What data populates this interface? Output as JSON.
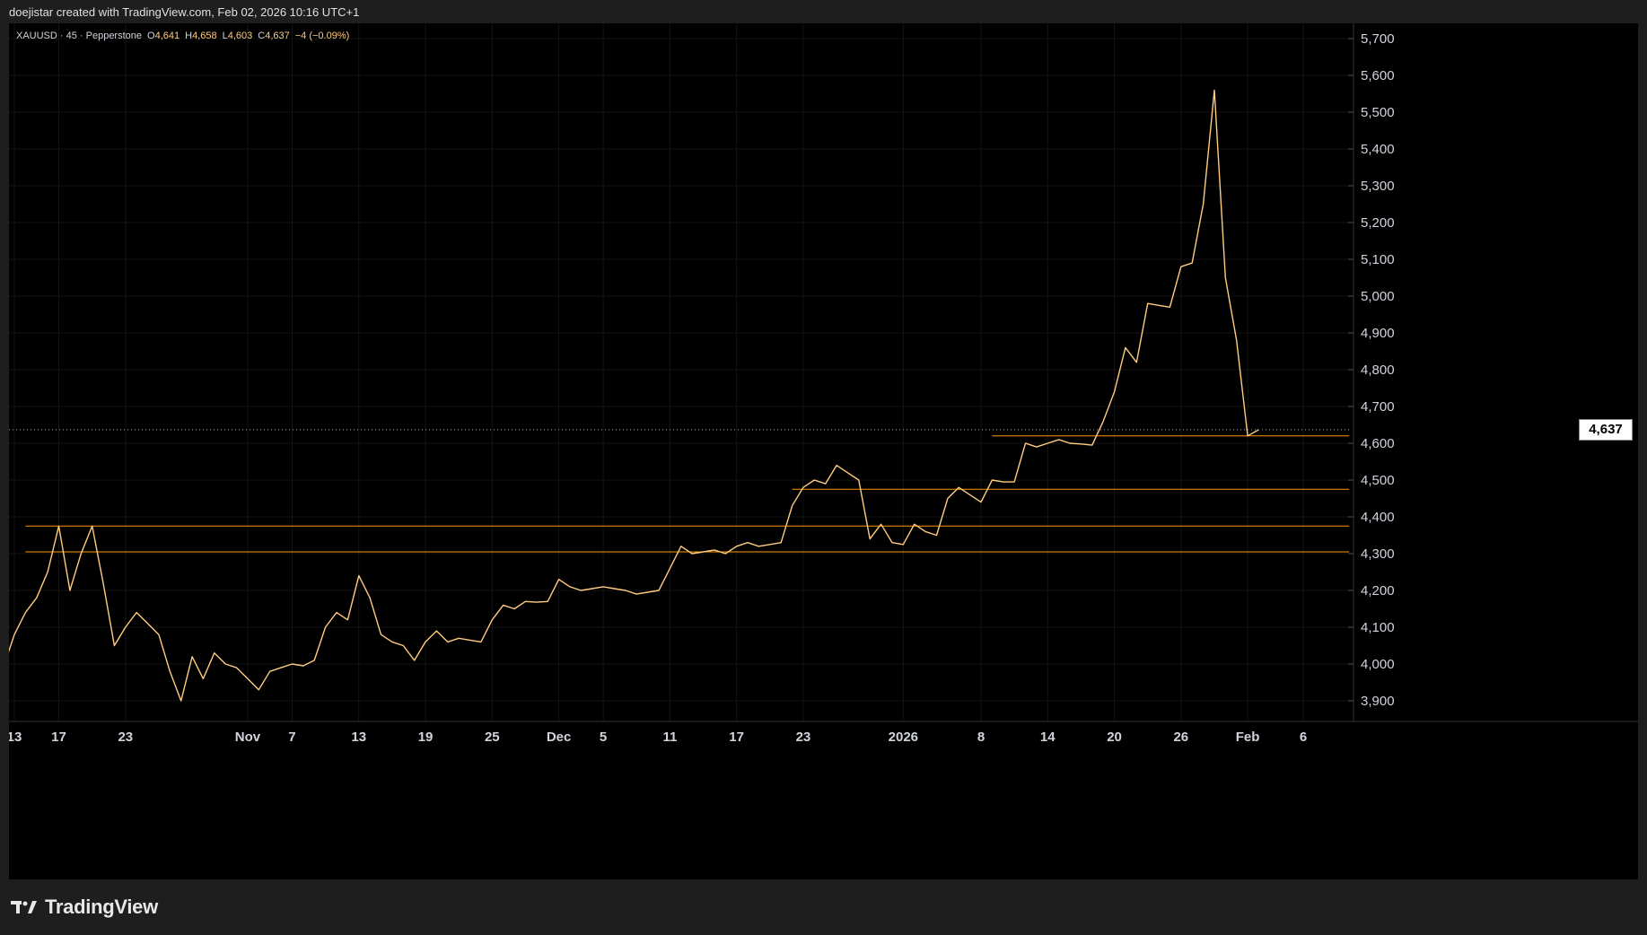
{
  "header": {
    "credit": "doejistar created with TradingView.com, Feb 02, 2026 10:16 UTC+1"
  },
  "legend": {
    "symbol": "XAUUSD · 45 · Pepperstone",
    "o_label": "O",
    "o_value": "4,641",
    "h_label": "H",
    "h_value": "4,658",
    "l_label": "L",
    "l_value": "4,603",
    "c_label": "C",
    "c_value": "4,637",
    "change": "−4 (−0.09%)"
  },
  "brand": {
    "name": "TradingView"
  },
  "colors": {
    "price": "#ffcc80",
    "level": "#ff9800",
    "background": "#000000",
    "grid": "#1a1a1a"
  },
  "chart_data": {
    "type": "line",
    "symbol": "XAUUSD",
    "interval": "45",
    "last_price": 4637,
    "last_price_label": "4,637",
    "y_ticks": [
      3900,
      4000,
      4100,
      4200,
      4300,
      4400,
      4500,
      4600,
      4700,
      4800,
      4900,
      5000,
      5100,
      5200,
      5300,
      5400,
      5500,
      5600,
      5700
    ],
    "y_tick_labels": [
      "3,900",
      "4,000",
      "4,100",
      "4,200",
      "4,300",
      "4,400",
      "4,500",
      "4,600",
      "4,700",
      "4,800",
      "4,900",
      "5,000",
      "5,100",
      "5,200",
      "5,300",
      "5,400",
      "5,500",
      "5,600",
      "5,700"
    ],
    "ylim": [
      3860,
      5760
    ],
    "x_ticks": [
      {
        "label": "13",
        "date": "2025-10-13"
      },
      {
        "label": "17",
        "date": "2025-10-17"
      },
      {
        "label": "23",
        "date": "2025-10-23"
      },
      {
        "label": "Nov",
        "date": "2025-11-03"
      },
      {
        "label": "7",
        "date": "2025-11-07"
      },
      {
        "label": "13",
        "date": "2025-11-13"
      },
      {
        "label": "19",
        "date": "2025-11-19"
      },
      {
        "label": "25",
        "date": "2025-11-25"
      },
      {
        "label": "Dec",
        "date": "2025-12-01"
      },
      {
        "label": "5",
        "date": "2025-12-05"
      },
      {
        "label": "11",
        "date": "2025-12-11"
      },
      {
        "label": "17",
        "date": "2025-12-17"
      },
      {
        "label": "23",
        "date": "2025-12-23"
      },
      {
        "label": "2026",
        "date": "2026-01-01"
      },
      {
        "label": "8",
        "date": "2026-01-08"
      },
      {
        "label": "14",
        "date": "2026-01-14"
      },
      {
        "label": "20",
        "date": "2026-01-20"
      },
      {
        "label": "26",
        "date": "2026-01-26"
      },
      {
        "label": "Feb",
        "date": "2026-02-01"
      },
      {
        "label": "6",
        "date": "2026-02-06"
      }
    ],
    "horizontal_levels": [
      {
        "price": 4620,
        "from_date": "2026-01-09"
      },
      {
        "price": 4475,
        "from_date": "2025-12-22"
      },
      {
        "price": 4375,
        "from_date": "2025-10-14"
      },
      {
        "price": 4305,
        "from_date": "2025-10-14"
      }
    ],
    "series": [
      {
        "points": [
          [
            "2025-10-12",
            3990
          ],
          [
            "2025-10-13",
            4080
          ],
          [
            "2025-10-14",
            4140
          ],
          [
            "2025-10-15",
            4180
          ],
          [
            "2025-10-16",
            4250
          ],
          [
            "2025-10-17",
            4375
          ],
          [
            "2025-10-18",
            4200
          ],
          [
            "2025-10-19",
            4300
          ],
          [
            "2025-10-20",
            4375
          ],
          [
            "2025-10-21",
            4220
          ],
          [
            "2025-10-22",
            4050
          ],
          [
            "2025-10-23",
            4100
          ],
          [
            "2025-10-24",
            4140
          ],
          [
            "2025-10-25",
            4110
          ],
          [
            "2025-10-26",
            4080
          ],
          [
            "2025-10-27",
            3980
          ],
          [
            "2025-10-28",
            3900
          ],
          [
            "2025-10-29",
            4020
          ],
          [
            "2025-10-30",
            3960
          ],
          [
            "2025-10-31",
            4030
          ],
          [
            "2025-11-01",
            4000
          ],
          [
            "2025-11-02",
            3990
          ],
          [
            "2025-11-03",
            3960
          ],
          [
            "2025-11-04",
            3930
          ],
          [
            "2025-11-05",
            3980
          ],
          [
            "2025-11-06",
            3990
          ],
          [
            "2025-11-07",
            4000
          ],
          [
            "2025-11-08",
            3995
          ],
          [
            "2025-11-09",
            4010
          ],
          [
            "2025-11-10",
            4100
          ],
          [
            "2025-11-11",
            4140
          ],
          [
            "2025-11-12",
            4120
          ],
          [
            "2025-11-13",
            4240
          ],
          [
            "2025-11-14",
            4180
          ],
          [
            "2025-11-15",
            4080
          ],
          [
            "2025-11-16",
            4060
          ],
          [
            "2025-11-17",
            4050
          ],
          [
            "2025-11-18",
            4010
          ],
          [
            "2025-11-19",
            4060
          ],
          [
            "2025-11-20",
            4090
          ],
          [
            "2025-11-21",
            4060
          ],
          [
            "2025-11-22",
            4070
          ],
          [
            "2025-11-23",
            4065
          ],
          [
            "2025-11-24",
            4060
          ],
          [
            "2025-11-25",
            4120
          ],
          [
            "2025-11-26",
            4160
          ],
          [
            "2025-11-27",
            4150
          ],
          [
            "2025-11-28",
            4170
          ],
          [
            "2025-11-29",
            4168
          ],
          [
            "2025-11-30",
            4170
          ],
          [
            "2025-12-01",
            4230
          ],
          [
            "2025-12-02",
            4210
          ],
          [
            "2025-12-03",
            4200
          ],
          [
            "2025-12-04",
            4205
          ],
          [
            "2025-12-05",
            4210
          ],
          [
            "2025-12-06",
            4205
          ],
          [
            "2025-12-07",
            4200
          ],
          [
            "2025-12-08",
            4190
          ],
          [
            "2025-12-09",
            4195
          ],
          [
            "2025-12-10",
            4200
          ],
          [
            "2025-12-11",
            4260
          ],
          [
            "2025-12-12",
            4320
          ],
          [
            "2025-12-13",
            4300
          ],
          [
            "2025-12-14",
            4305
          ],
          [
            "2025-12-15",
            4310
          ],
          [
            "2025-12-16",
            4300
          ],
          [
            "2025-12-17",
            4320
          ],
          [
            "2025-12-18",
            4330
          ],
          [
            "2025-12-19",
            4320
          ],
          [
            "2025-12-20",
            4325
          ],
          [
            "2025-12-21",
            4330
          ],
          [
            "2025-12-22",
            4430
          ],
          [
            "2025-12-23",
            4480
          ],
          [
            "2025-12-24",
            4500
          ],
          [
            "2025-12-25",
            4490
          ],
          [
            "2025-12-26",
            4540
          ],
          [
            "2025-12-27",
            4520
          ],
          [
            "2025-12-28",
            4500
          ],
          [
            "2025-12-29",
            4340
          ],
          [
            "2025-12-30",
            4380
          ],
          [
            "2025-12-31",
            4330
          ],
          [
            "2026-01-01",
            4325
          ],
          [
            "2026-01-02",
            4380
          ],
          [
            "2026-01-03",
            4360
          ],
          [
            "2026-01-04",
            4350
          ],
          [
            "2026-01-05",
            4450
          ],
          [
            "2026-01-06",
            4480
          ],
          [
            "2026-01-07",
            4460
          ],
          [
            "2026-01-08",
            4440
          ],
          [
            "2026-01-09",
            4500
          ],
          [
            "2026-01-10",
            4495
          ],
          [
            "2026-01-11",
            4495
          ],
          [
            "2026-01-12",
            4600
          ],
          [
            "2026-01-13",
            4590
          ],
          [
            "2026-01-14",
            4600
          ],
          [
            "2026-01-15",
            4610
          ],
          [
            "2026-01-16",
            4600
          ],
          [
            "2026-01-17",
            4598
          ],
          [
            "2026-01-18",
            4595
          ],
          [
            "2026-01-19",
            4660
          ],
          [
            "2026-01-20",
            4740
          ],
          [
            "2026-01-21",
            4860
          ],
          [
            "2026-01-22",
            4820
          ],
          [
            "2026-01-23",
            4980
          ],
          [
            "2026-01-24",
            4975
          ],
          [
            "2026-01-25",
            4970
          ],
          [
            "2026-01-26",
            5080
          ],
          [
            "2026-01-27",
            5090
          ],
          [
            "2026-01-28",
            5250
          ],
          [
            "2026-01-29",
            5560
          ],
          [
            "2026-01-30",
            5050
          ],
          [
            "2026-01-31",
            4880
          ],
          [
            "2026-02-01",
            4620
          ],
          [
            "2026-02-02",
            4637
          ]
        ]
      }
    ]
  }
}
